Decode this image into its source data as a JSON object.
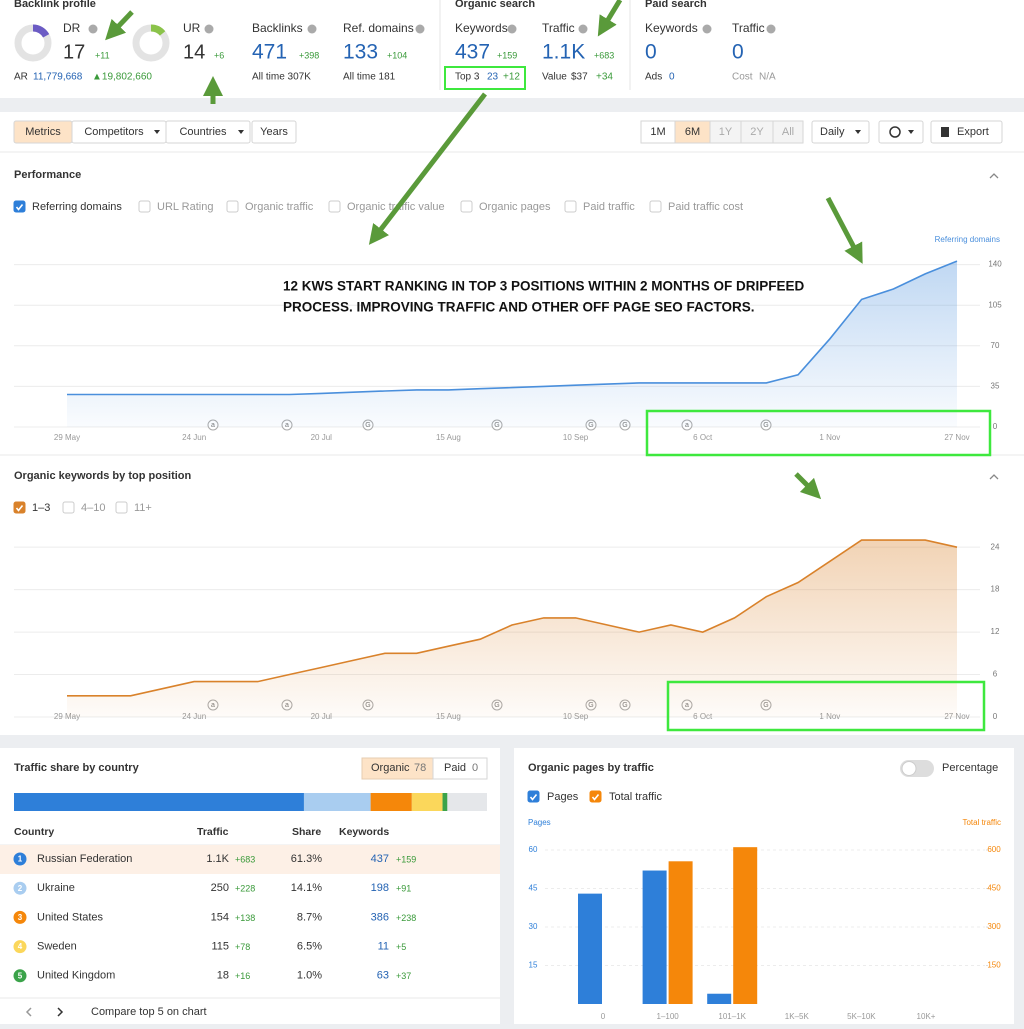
{
  "backlink_profile": {
    "title": "Backlink profile",
    "dr": {
      "label": "DR",
      "value": 17,
      "change": "+11"
    },
    "ar": {
      "label": "AR",
      "value": "11,779,668",
      "change": "▲19,802,660"
    },
    "ur": {
      "label": "UR",
      "value": 14,
      "change": "+6"
    },
    "backlinks": {
      "label": "Backlinks",
      "value": "471",
      "change": "+398",
      "sub": "All time 307K"
    },
    "ref_domains": {
      "label": "Ref. domains",
      "value": "133",
      "change": "+104",
      "sub": "All time 181"
    }
  },
  "organic_search": {
    "title": "Organic search",
    "keywords": {
      "label": "Keywords",
      "value": "437",
      "change": "+159"
    },
    "top3": {
      "label": "Top 3",
      "value": "23",
      "change": "+12"
    },
    "traffic": {
      "label": "Traffic",
      "value": "1.1K",
      "change": "+683"
    },
    "value": {
      "label": "Value",
      "value": "$37",
      "change": "+34"
    }
  },
  "paid_search": {
    "title": "Paid search",
    "keywords": {
      "label": "Keywords",
      "value": "0"
    },
    "ads": {
      "label": "Ads",
      "value": "0"
    },
    "traffic": {
      "label": "Traffic",
      "value": "0"
    },
    "cost": {
      "label": "Cost",
      "value": "N/A"
    }
  },
  "toolbar": {
    "tabs": [
      "Metrics",
      "Competitors",
      "Countries",
      "Years"
    ],
    "ranges": [
      "1M",
      "6M",
      "1Y",
      "2Y",
      "All"
    ],
    "interval": "Daily",
    "export": "Export"
  },
  "event_markers": [
    "a",
    "a",
    "G",
    "G",
    "G",
    "G",
    "a",
    "G"
  ],
  "performance": {
    "title": "Performance",
    "checkboxes": [
      {
        "label": "Referring domains",
        "checked": true
      },
      {
        "label": "URL Rating",
        "checked": false
      },
      {
        "label": "Organic traffic",
        "checked": false
      },
      {
        "label": "Organic traffic value",
        "checked": false
      },
      {
        "label": "Organic pages",
        "checked": false
      },
      {
        "label": "Paid traffic",
        "checked": false
      },
      {
        "label": "Paid traffic cost",
        "checked": false
      }
    ],
    "annotation": [
      "12 KWS START RANKING IN TOP 3 POSITIONS WITHIN 2 MONTHS OF DRIPFEED",
      "PROCESS. IMPROVING TRAFFIC AND OTHER OFF PAGE SEO FACTORS."
    ],
    "chart": {
      "type": "area",
      "axis_title": "Referring domains",
      "categories": [
        "29 May",
        null,
        null,
        null,
        "24 Jun",
        null,
        null,
        null,
        "20 Jul",
        null,
        null,
        null,
        "15 Aug",
        null,
        null,
        null,
        "10 Sep",
        null,
        null,
        null,
        "6 Oct",
        null,
        null,
        null,
        "1 Nov",
        null,
        null,
        null,
        "27 Nov"
      ],
      "series": [
        {
          "color": "#4a8fdc",
          "values": [
            28,
            28,
            28,
            28,
            28,
            28,
            28,
            28,
            29,
            30,
            31,
            32,
            32,
            33,
            34,
            35,
            36,
            37,
            38,
            38,
            38,
            38,
            38,
            45,
            76,
            110,
            119,
            132,
            143
          ]
        }
      ],
      "ylim": [
        0,
        150
      ],
      "yticks": [
        0,
        35,
        70,
        105,
        140
      ],
      "grid": true
    }
  },
  "keywords_by_position": {
    "title": "Organic keywords by top position",
    "checkboxes": [
      {
        "label": "1–3",
        "checked": true
      },
      {
        "label": "4–10",
        "checked": false
      },
      {
        "label": "11+",
        "checked": false
      }
    ],
    "chart": {
      "type": "area",
      "categories": [
        "29 May",
        null,
        null,
        null,
        "24 Jun",
        null,
        null,
        null,
        "20 Jul",
        null,
        null,
        null,
        "15 Aug",
        null,
        null,
        null,
        "10 Sep",
        null,
        null,
        null,
        "6 Oct",
        null,
        null,
        null,
        "1 Nov",
        null,
        null,
        null,
        "27 Nov"
      ],
      "series": [
        {
          "color": "#d9822b",
          "values": [
            3,
            3,
            3,
            4,
            5,
            5,
            5,
            6,
            7,
            8,
            9,
            9,
            10,
            11,
            13,
            14,
            14,
            13,
            12,
            13,
            12,
            14,
            17,
            19,
            22,
            25,
            25,
            25,
            24
          ]
        }
      ],
      "ylim": [
        0,
        26
      ],
      "yticks": [
        0,
        6,
        12,
        18,
        24
      ],
      "grid": true
    }
  },
  "traffic_share": {
    "title": "Traffic share by country",
    "tabs": {
      "organic": "Organic",
      "organic_count": 78,
      "paid": "Paid",
      "paid_count": 0
    },
    "headers": [
      "Country",
      "Traffic",
      "Share",
      "Keywords"
    ],
    "ranks": [
      1,
      2,
      3,
      4,
      5
    ],
    "names": [
      "Russian Federation",
      "Ukraine",
      "United States",
      "Sweden",
      "United Kingdom"
    ],
    "colors": [
      "#2e7fd9",
      "#a9cdf0",
      "#f5870a",
      "#fbd75b",
      "#3ba34a"
    ],
    "traffic": [
      "1.1K",
      "250",
      "154",
      "115",
      "18"
    ],
    "traffic_change": [
      "+683",
      "+228",
      "+138",
      "+78",
      "+16"
    ],
    "share": [
      61.3,
      14.1,
      8.7,
      6.5,
      1.0
    ],
    "share_labels": [
      "61.3%",
      "14.1%",
      "8.7%",
      "6.5%",
      "1.0%"
    ],
    "keywords": [
      437,
      198,
      386,
      11,
      63
    ],
    "keywords_change": [
      "+159",
      "+91",
      "+238",
      "+5",
      "+37"
    ],
    "footer": "Compare top 5 on chart"
  },
  "organic_pages": {
    "title": "Organic pages by traffic",
    "toggle": "Percentage",
    "chart": {
      "type": "bar",
      "categories": [
        "0",
        "1–100",
        "101–1K",
        "1K–5K",
        "5K–10K",
        "10K+"
      ],
      "series": [
        {
          "name": "Pages",
          "color": "#2e7fd9",
          "values": [
            43,
            52,
            4,
            0,
            0,
            0
          ]
        },
        {
          "name": "Total traffic",
          "color": "#f5870a",
          "axis": "y2",
          "values": [
            0,
            556,
            611,
            0,
            0,
            0
          ]
        }
      ],
      "y_title": "Pages",
      "y2_title": "Total traffic",
      "ylim": [
        0,
        60
      ],
      "yticks": [
        15,
        30,
        45,
        60
      ],
      "y2lim": [
        0,
        600
      ],
      "y2ticks": [
        150,
        300,
        450,
        600
      ],
      "grid": true
    }
  }
}
